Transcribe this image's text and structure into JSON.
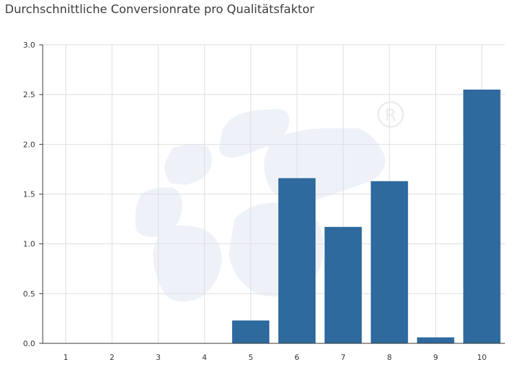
{
  "chart_data": {
    "type": "bar",
    "title": "Durchschnittliche Conversionrate pro Qualitätsfaktor",
    "xlabel": "",
    "ylabel": "",
    "categories": [
      "1",
      "2",
      "3",
      "4",
      "5",
      "6",
      "7",
      "8",
      "9",
      "10"
    ],
    "values": [
      0,
      0,
      0,
      0,
      0.23,
      1.66,
      1.17,
      1.63,
      0.06,
      2.55
    ],
    "ylim": [
      0,
      3.0
    ],
    "yticks": [
      "0.0",
      "0.5",
      "1.0",
      "1.5",
      "2.0",
      "2.5",
      "3.0"
    ],
    "grid": true,
    "legend": "none",
    "bar_color": "#2e6a9e",
    "grid_color": "#dddddd"
  },
  "watermark": {
    "icon": "registered-trademark-logo",
    "color": "#eef2f8"
  }
}
